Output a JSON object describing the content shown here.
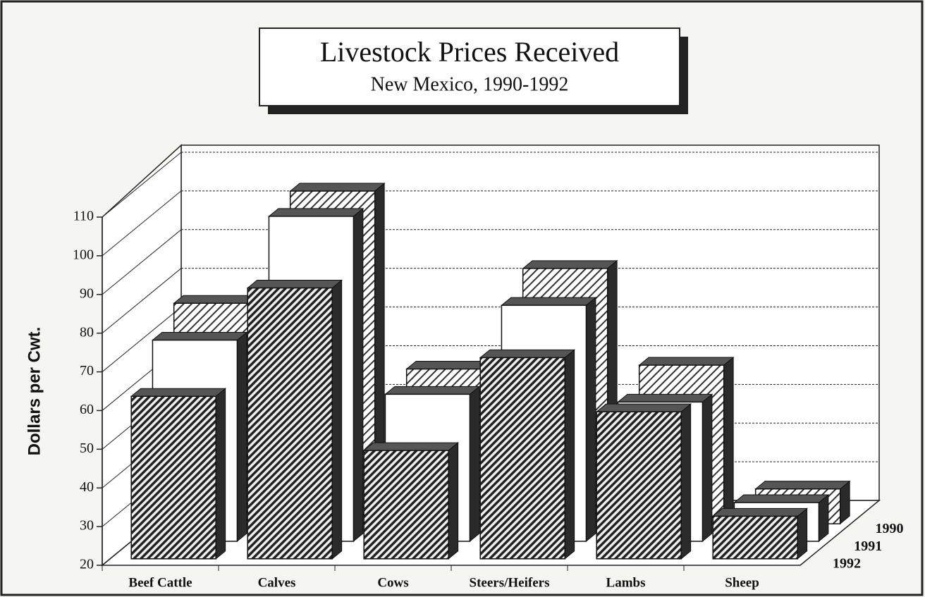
{
  "chart_data": {
    "type": "bar3d",
    "title": "Livestock Prices Received",
    "subtitle": "New Mexico, 1990-1992",
    "y_label": "Dollars per Cwt.",
    "categories": [
      "Beef Cattle",
      "Calves",
      "Cows",
      "Steers/Heifers",
      "Lambs",
      "Sheep"
    ],
    "series": [
      {
        "name": "1990",
        "color": "hatch-light",
        "values": [
          77,
          106,
          60,
          86,
          61,
          29
        ]
      },
      {
        "name": "1991",
        "color": "white",
        "values": [
          72,
          104,
          58,
          81,
          56,
          30
        ]
      },
      {
        "name": "1992",
        "color": "hatch-dense",
        "values": [
          62,
          90,
          48,
          72,
          58,
          31
        ]
      }
    ],
    "ylim": [
      20,
      110
    ],
    "yticks": [
      20,
      30,
      40,
      50,
      60,
      70,
      80,
      90,
      100,
      110
    ],
    "grid": true
  }
}
